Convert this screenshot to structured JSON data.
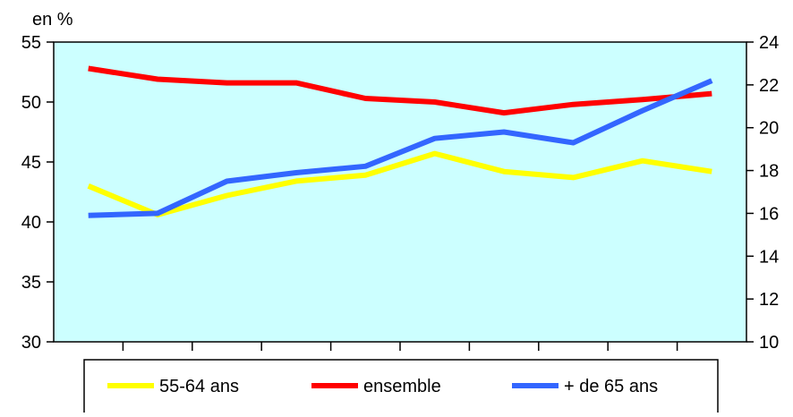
{
  "chart_data": {
    "type": "line",
    "unit_label": "en %",
    "categories": [
      "",
      "",
      "",
      "",
      "",
      "",
      "",
      "",
      "",
      ""
    ],
    "left_axis": {
      "ylim": [
        30,
        55
      ],
      "ticks": [
        "30",
        "35",
        "40",
        "45",
        "50",
        "55"
      ]
    },
    "right_axis": {
      "ylim": [
        10,
        24
      ],
      "ticks": [
        "10",
        "12",
        "14",
        "16",
        "18",
        "20",
        "22",
        "24"
      ]
    },
    "series": [
      {
        "name": "55-64 ans",
        "axis": "left",
        "color": "#ffff00",
        "values": [
          43.0,
          40.6,
          42.2,
          43.4,
          43.9,
          45.7,
          44.2,
          43.7,
          45.1,
          44.2
        ]
      },
      {
        "name": "ensemble",
        "axis": "left",
        "color": "#ff0000",
        "values": [
          52.8,
          51.9,
          51.6,
          51.6,
          50.3,
          50.0,
          49.1,
          49.8,
          50.2,
          50.7
        ]
      },
      {
        "name": "+ de 65 ans",
        "axis": "right",
        "color": "#3366ff",
        "values": [
          15.9,
          16.0,
          17.5,
          17.9,
          18.2,
          19.5,
          19.8,
          19.3,
          20.8,
          22.2
        ]
      }
    ],
    "plot_background": "#ccffff",
    "grid": false,
    "legend_position": "bottom"
  }
}
